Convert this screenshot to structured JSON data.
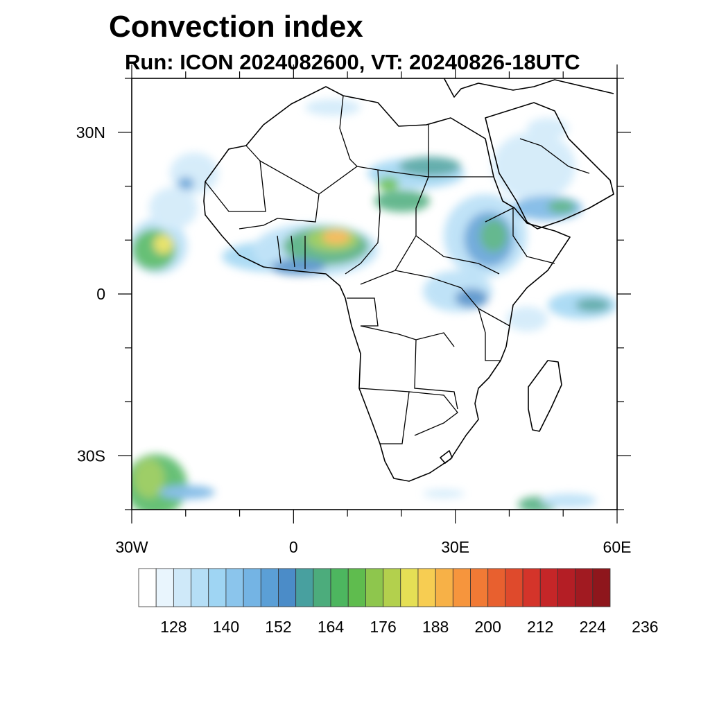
{
  "title": "Convection index",
  "subtitle": "Run: ICON 2024082600,  VT: 20240826-18UTC",
  "map": {
    "projection": "cylindrical equidistant",
    "lon_range": [
      -30,
      60
    ],
    "lat_range": [
      -40,
      40
    ],
    "lat_labels": [
      {
        "lat": 30,
        "text": "30N"
      },
      {
        "lat": 0,
        "text": "0"
      },
      {
        "lat": -30,
        "text": "30S"
      }
    ],
    "lon_labels": [
      {
        "lon": -30,
        "text": "30W"
      },
      {
        "lon": 0,
        "text": "0"
      },
      {
        "lon": 30,
        "text": "30E"
      },
      {
        "lon": 60,
        "text": "60E"
      }
    ]
  },
  "colorbar": {
    "colors": [
      "#ffffff",
      "#e9f5fd",
      "#cfe9f9",
      "#b5def6",
      "#9fd5f3",
      "#8bc5ec",
      "#74b4e4",
      "#5b9fd6",
      "#4b8cc8",
      "#48a09f",
      "#4cac7c",
      "#4db65f",
      "#5fbc4e",
      "#8ec64d",
      "#b3d04d",
      "#e5df55",
      "#f7cd52",
      "#f7b147",
      "#f6953d",
      "#f17a35",
      "#e8602f",
      "#df4a2c",
      "#d4342a",
      "#c52628",
      "#b41e25",
      "#a11a21",
      "#8e161c"
    ],
    "tick_labels": [
      "128",
      "140",
      "152",
      "164",
      "176",
      "188",
      "200",
      "212",
      "224",
      "236"
    ]
  }
}
